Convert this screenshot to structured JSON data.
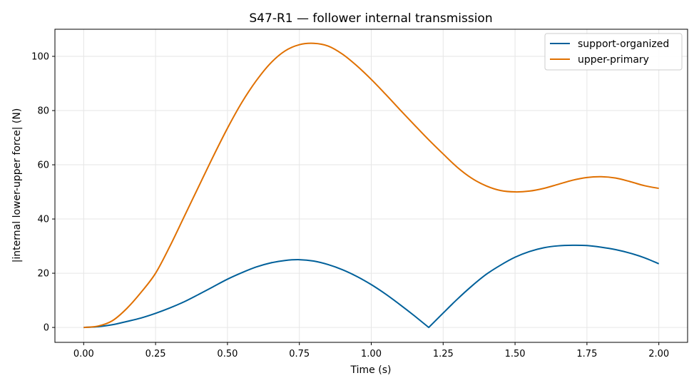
{
  "chart_data": {
    "type": "line",
    "title": "S47-R1 — follower internal transmission",
    "xlabel": "Time (s)",
    "ylabel": "|internal lower-upper force| (N)",
    "xlim": [
      -0.1,
      2.1
    ],
    "ylim": [
      -5.5,
      110
    ],
    "xticks": [
      0.0,
      0.25,
      0.5,
      0.75,
      1.0,
      1.25,
      1.5,
      1.75,
      2.0
    ],
    "xtick_labels": [
      "0.00",
      "0.25",
      "0.50",
      "0.75",
      "1.00",
      "1.25",
      "1.50",
      "1.75",
      "2.00"
    ],
    "yticks": [
      0,
      20,
      40,
      60,
      80,
      100
    ],
    "ytick_labels": [
      "0",
      "20",
      "40",
      "60",
      "80",
      "100"
    ],
    "grid": true,
    "legend_position": "top-right",
    "series": [
      {
        "name": "support-organized",
        "color": "#00609a",
        "x": [
          0.0,
          0.05,
          0.1,
          0.15,
          0.2,
          0.25,
          0.3,
          0.35,
          0.4,
          0.45,
          0.5,
          0.55,
          0.6,
          0.65,
          0.7,
          0.75,
          0.8,
          0.85,
          0.9,
          0.95,
          1.0,
          1.05,
          1.1,
          1.15,
          1.2,
          1.25,
          1.3,
          1.35,
          1.4,
          1.45,
          1.5,
          1.55,
          1.6,
          1.65,
          1.7,
          1.75,
          1.8,
          1.85,
          1.9,
          1.95,
          2.0
        ],
        "y": [
          0.0,
          0.3,
          1.0,
          2.2,
          3.5,
          5.2,
          7.2,
          9.5,
          12.2,
          15.0,
          17.8,
          20.2,
          22.3,
          23.8,
          24.7,
          25.0,
          24.5,
          23.2,
          21.3,
          18.8,
          15.8,
          12.3,
          8.4,
          4.3,
          0.0,
          5.3,
          10.5,
          15.3,
          19.6,
          23.0,
          25.9,
          28.0,
          29.4,
          30.1,
          30.3,
          30.2,
          29.6,
          28.7,
          27.4,
          25.7,
          23.5
        ]
      },
      {
        "name": "upper-primary",
        "color": "#e07000",
        "x": [
          0.0,
          0.05,
          0.1,
          0.15,
          0.2,
          0.25,
          0.3,
          0.35,
          0.4,
          0.45,
          0.5,
          0.55,
          0.6,
          0.65,
          0.7,
          0.75,
          0.8,
          0.85,
          0.9,
          0.95,
          1.0,
          1.05,
          1.1,
          1.15,
          1.2,
          1.25,
          1.3,
          1.35,
          1.4,
          1.45,
          1.5,
          1.55,
          1.6,
          1.65,
          1.7,
          1.75,
          1.8,
          1.85,
          1.9,
          1.95,
          2.0
        ],
        "y": [
          0.0,
          0.5,
          2.5,
          7.0,
          13.0,
          20.0,
          30.0,
          41.0,
          52.0,
          63.0,
          73.5,
          83.0,
          91.0,
          97.5,
          102.0,
          104.3,
          104.8,
          103.8,
          100.8,
          96.5,
          91.5,
          86.0,
          80.3,
          74.7,
          69.2,
          64.0,
          59.0,
          55.0,
          52.2,
          50.5,
          50.0,
          50.3,
          51.3,
          52.8,
          54.3,
          55.3,
          55.6,
          55.1,
          53.8,
          52.3,
          51.3
        ]
      }
    ]
  }
}
